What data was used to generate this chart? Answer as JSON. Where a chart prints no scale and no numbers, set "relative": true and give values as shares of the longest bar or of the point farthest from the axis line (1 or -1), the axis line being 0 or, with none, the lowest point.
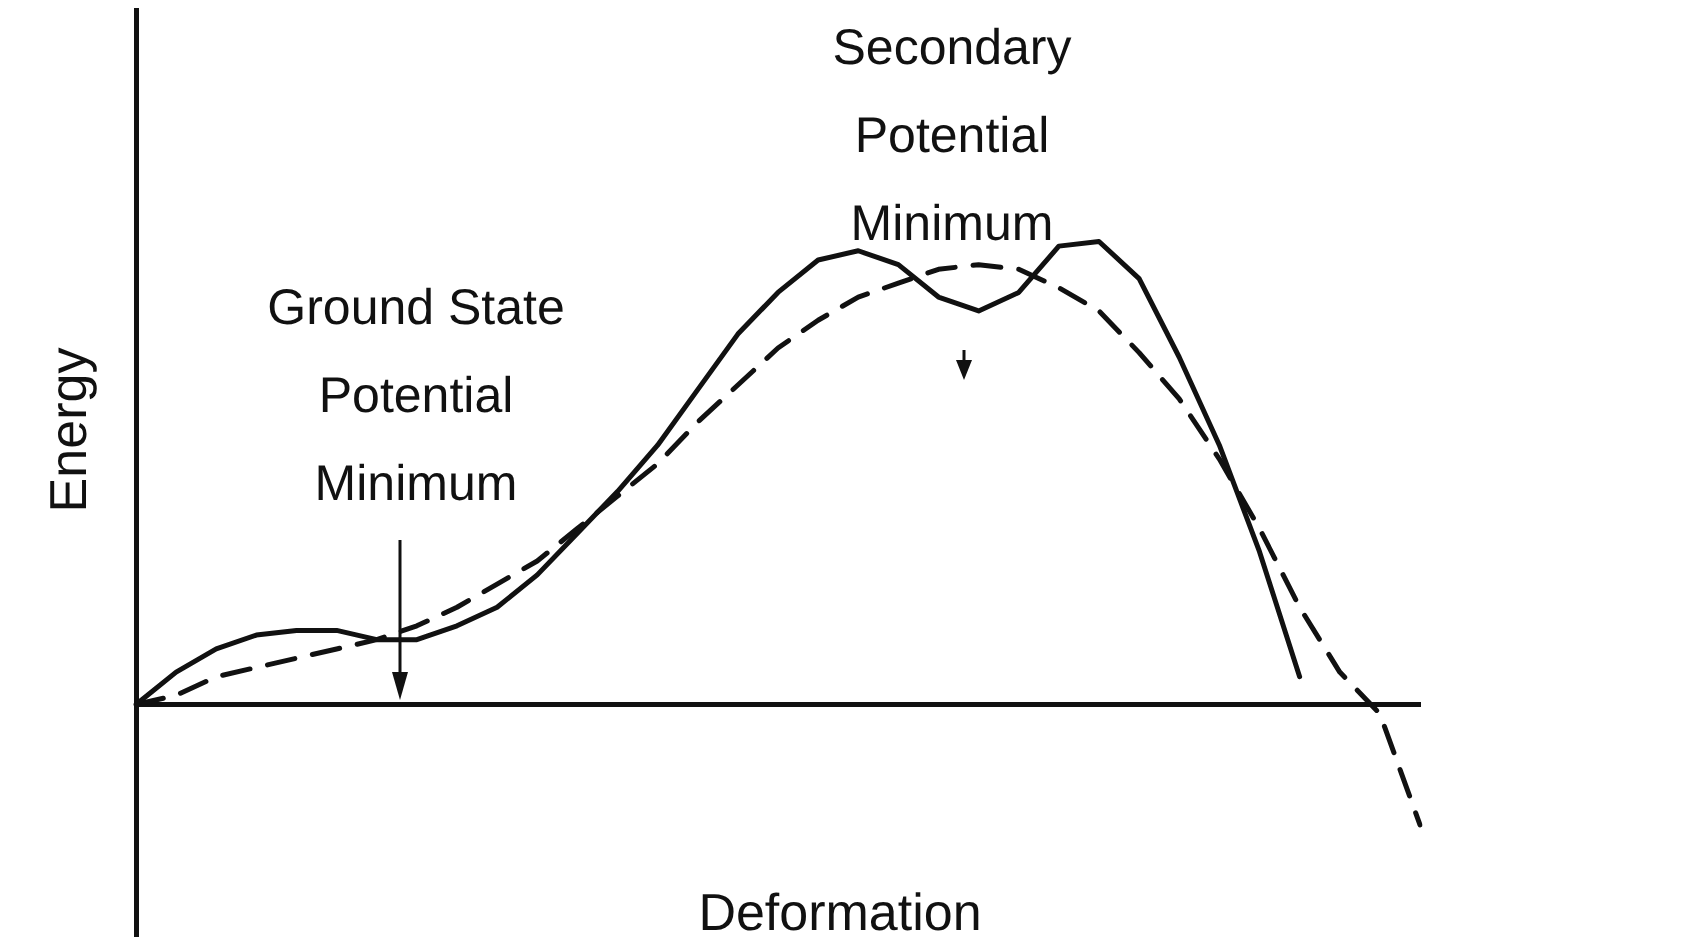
{
  "chart_data": {
    "type": "line",
    "relative": true,
    "xlabel": "Deformation",
    "ylabel": "Energy",
    "categories": [
      null,
      null,
      null,
      null,
      null,
      null,
      null,
      null,
      null,
      null,
      null,
      null,
      null,
      null,
      null,
      null,
      null,
      null,
      null,
      null,
      null,
      null,
      null,
      null,
      null,
      null,
      null,
      null,
      null,
      null,
      null,
      null,
      null
    ],
    "series": [
      {
        "color": "#111111",
        "line_style": "solid",
        "values": [
          0,
          0.07,
          0.12,
          0.15,
          0.16,
          0.16,
          0.14,
          0.14,
          0.17,
          0.21,
          0.28,
          0.37,
          0.46,
          0.56,
          0.68,
          0.8,
          0.89,
          0.96,
          0.98,
          0.95,
          0.88,
          0.85,
          0.89,
          0.99,
          1.0,
          0.92,
          0.75,
          0.56,
          0.33,
          0.06,
          null,
          null,
          null
        ]
      },
      {
        "color": "#111111",
        "line_style": "dashed",
        "values": [
          0,
          0.02,
          0.06,
          0.08,
          0.1,
          0.12,
          0.14,
          0.17,
          0.21,
          0.26,
          0.31,
          0.38,
          0.45,
          0.52,
          0.61,
          0.69,
          0.77,
          0.83,
          0.88,
          0.91,
          0.94,
          0.95,
          0.94,
          0.9,
          0.85,
          0.76,
          0.66,
          0.53,
          0.38,
          0.21,
          0.07,
          -0.02,
          -0.26
        ]
      }
    ],
    "annotations": [
      "Ground State Potential Minimum",
      "Secondary Potential Minimum"
    ],
    "legend": false,
    "marker": "none"
  }
}
